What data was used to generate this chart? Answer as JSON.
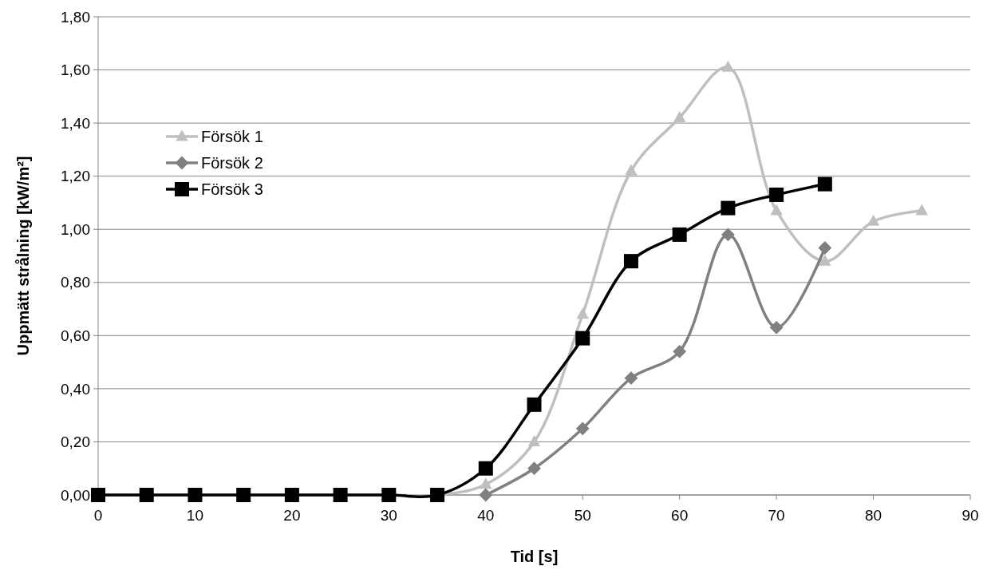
{
  "chart_data": {
    "type": "line",
    "xlabel": "Tid [s]",
    "ylabel": "Uppmätt strålning [kW/m²]",
    "xlim": [
      0,
      90
    ],
    "xticks": [
      0,
      10,
      20,
      30,
      40,
      50,
      60,
      70,
      80,
      90
    ],
    "ylim": [
      0,
      1.8
    ],
    "yticks": [
      {
        "value": 0,
        "label": "0,00"
      },
      {
        "value": 0.2,
        "label": "0,20"
      },
      {
        "value": 0.4,
        "label": "0,40"
      },
      {
        "value": 0.6,
        "label": "0,60"
      },
      {
        "value": 0.8,
        "label": "0,80"
      },
      {
        "value": 1,
        "label": "1,00"
      },
      {
        "value": 1.2,
        "label": "1,20"
      },
      {
        "value": 1.4,
        "label": "1,40"
      },
      {
        "value": 1.6,
        "label": "1,60"
      },
      {
        "value": 1.8,
        "label": "1,80"
      }
    ],
    "grid": "y",
    "legend": "top left",
    "series": [
      {
        "name": "Försök 1",
        "color": "#bfbfbf",
        "marker": "triangle",
        "x": [
          0,
          5,
          10,
          15,
          20,
          25,
          30,
          35,
          40,
          45,
          50,
          55,
          60,
          65,
          70,
          75,
          80,
          85
        ],
        "values": [
          0,
          0,
          0,
          0,
          0,
          0,
          0,
          0,
          0.04,
          0.2,
          0.68,
          1.22,
          1.42,
          1.61,
          1.07,
          0.88,
          1.03,
          1.07
        ]
      },
      {
        "name": "Försök 2",
        "color": "#808080",
        "marker": "diamond",
        "x": [
          40,
          45,
          50,
          55,
          60,
          65,
          70,
          75
        ],
        "values": [
          0,
          0.1,
          0.25,
          0.44,
          0.54,
          0.98,
          0.63,
          0.93
        ]
      },
      {
        "name": "Försök 3",
        "color": "#000000",
        "marker": "square",
        "x": [
          0,
          5,
          10,
          15,
          20,
          25,
          30,
          35,
          40,
          45,
          50,
          55,
          60,
          65,
          70,
          75
        ],
        "values": [
          0,
          0,
          0,
          0,
          0,
          0,
          0,
          0,
          0.1,
          0.34,
          0.59,
          0.88,
          0.98,
          1.08,
          1.13,
          1.17
        ]
      }
    ]
  }
}
